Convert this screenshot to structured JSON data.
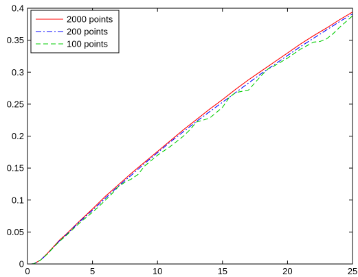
{
  "chart_data": {
    "type": "line",
    "xlim": [
      0,
      25
    ],
    "ylim": [
      0,
      0.4
    ],
    "grid": false,
    "legend_placement": "top-left",
    "x_ticks": [
      0,
      5,
      10,
      15,
      20,
      25
    ],
    "x_tick_labels": [
      "0",
      "5",
      "10",
      "15",
      "20",
      "25"
    ],
    "y_ticks": [
      0,
      0.05,
      0.1,
      0.15,
      0.2,
      0.25,
      0.3,
      0.35,
      0.4
    ],
    "y_tick_labels": [
      "0",
      "0.05",
      "0.1",
      "0.15",
      "0.2",
      "0.25",
      "0.3",
      "0.35",
      "0.4"
    ],
    "series": [
      {
        "name": "2000 points",
        "color": "#ff0000",
        "dash": "solid",
        "x": [
          0.3,
          0.5,
          1,
          1.5,
          2,
          2.5,
          3,
          4,
          5,
          6,
          7,
          8,
          9,
          10,
          11,
          12,
          13,
          14,
          15,
          16,
          17,
          18,
          19,
          20,
          21,
          22,
          23,
          24,
          25
        ],
        "y": [
          0,
          0.0005,
          0.006,
          0.016,
          0.027,
          0.038,
          0.047,
          0.067,
          0.086,
          0.106,
          0.124,
          0.142,
          0.159,
          0.176,
          0.193,
          0.21,
          0.226,
          0.242,
          0.257,
          0.273,
          0.288,
          0.302,
          0.316,
          0.33,
          0.344,
          0.357,
          0.369,
          0.382,
          0.394
        ]
      },
      {
        "name": "200 points",
        "color": "#0000ff",
        "dash": "dashdot",
        "x": [
          0.3,
          0.5,
          1,
          1.5,
          2,
          2.5,
          3,
          4,
          5,
          6,
          7,
          8,
          9,
          10,
          11,
          12,
          13,
          14,
          15,
          16,
          17,
          18,
          19,
          20,
          21,
          22,
          23,
          24,
          25
        ],
        "y": [
          0,
          0.0005,
          0.006,
          0.015,
          0.026,
          0.037,
          0.046,
          0.066,
          0.084,
          0.103,
          0.122,
          0.139,
          0.157,
          0.174,
          0.191,
          0.207,
          0.223,
          0.238,
          0.253,
          0.268,
          0.283,
          0.298,
          0.312,
          0.326,
          0.34,
          0.353,
          0.366,
          0.379,
          0.391
        ]
      },
      {
        "name": "100 points",
        "color": "#00cc00",
        "dash": "dashed",
        "x": [
          0.3,
          0.5,
          1,
          1.5,
          2,
          2.5,
          3,
          4,
          5,
          5.5,
          6,
          6.5,
          7,
          7.5,
          8,
          8.5,
          9,
          10,
          11,
          12,
          12.5,
          13,
          13.5,
          14,
          15,
          15.5,
          16,
          16.5,
          17,
          18,
          18.5,
          19,
          20,
          21,
          22,
          22.5,
          23,
          23.5,
          24,
          25
        ],
        "y": [
          0,
          0.0005,
          0.006,
          0.015,
          0.026,
          0.036,
          0.045,
          0.064,
          0.081,
          0.09,
          0.1,
          0.11,
          0.121,
          0.128,
          0.133,
          0.14,
          0.153,
          0.17,
          0.184,
          0.2,
          0.21,
          0.222,
          0.225,
          0.228,
          0.245,
          0.26,
          0.268,
          0.27,
          0.272,
          0.295,
          0.305,
          0.31,
          0.322,
          0.336,
          0.347,
          0.348,
          0.352,
          0.36,
          0.37,
          0.388
        ]
      }
    ]
  }
}
